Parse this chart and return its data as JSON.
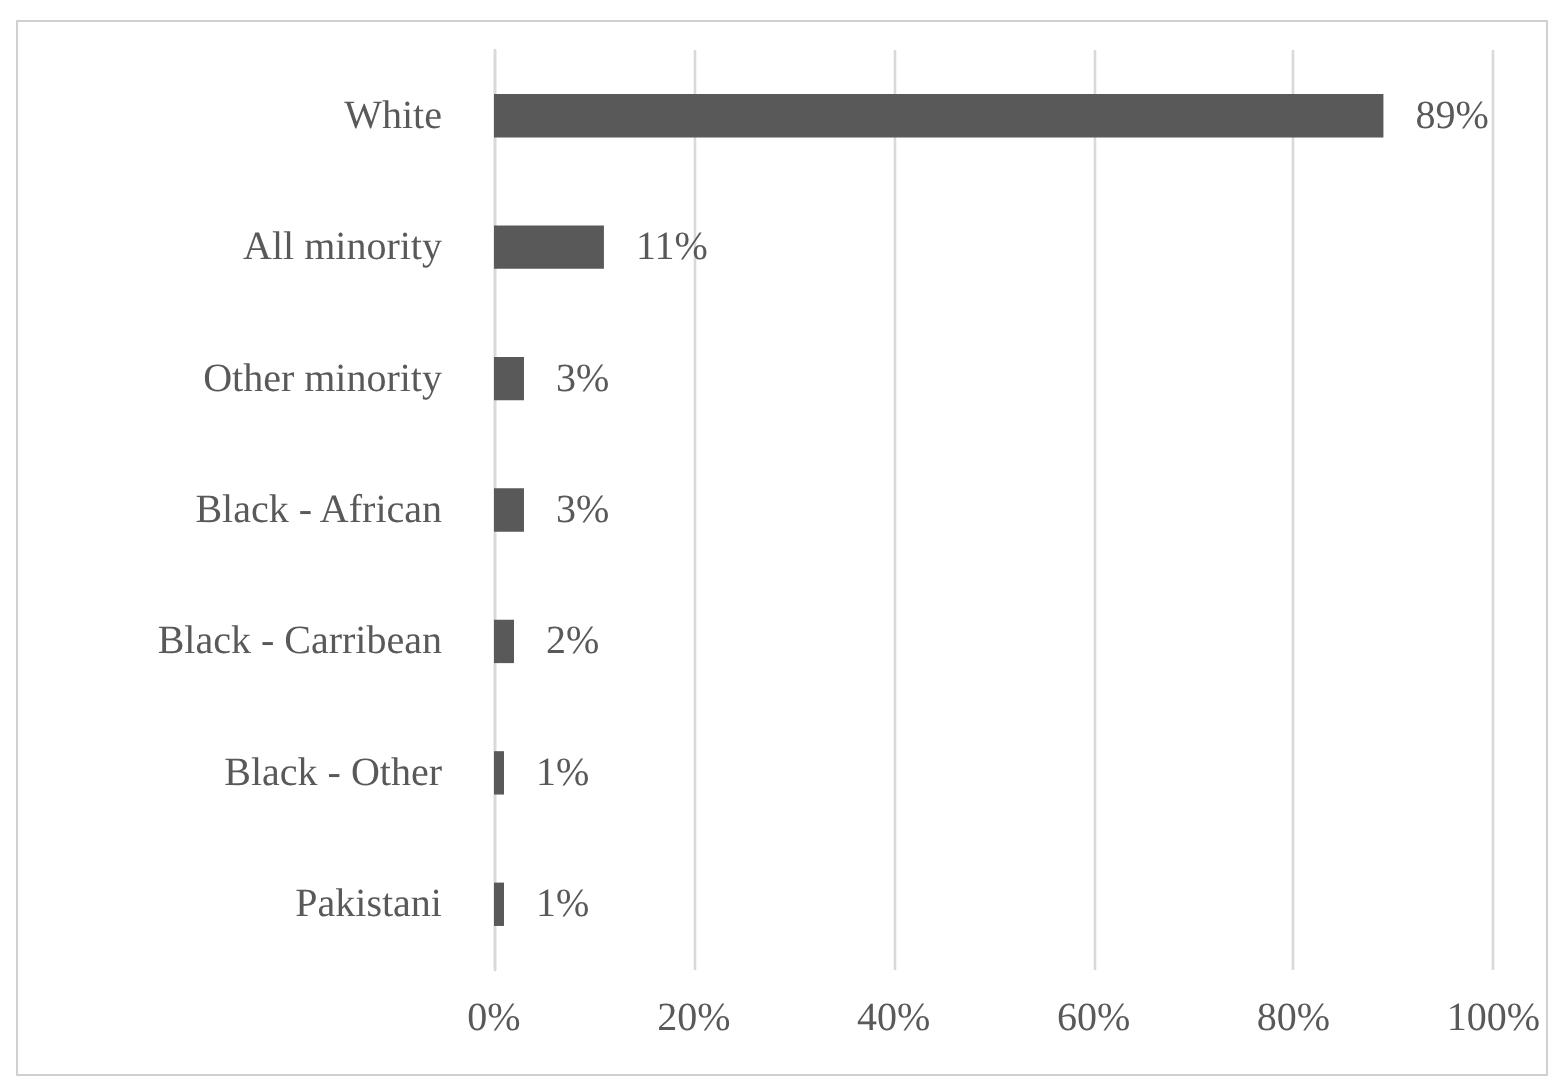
{
  "chart_data": {
    "type": "bar",
    "orientation": "horizontal",
    "categories": [
      "White",
      "All minority",
      "Other minority",
      "Black - African",
      "Black - Carribean",
      "Black - Other",
      "Pakistani"
    ],
    "values": [
      89,
      11,
      3,
      3,
      2,
      1,
      1
    ],
    "value_labels": [
      "89%",
      "11%",
      "3%",
      "3%",
      "2%",
      "1%",
      "1%"
    ],
    "color": "#595959",
    "xlim": [
      0,
      100
    ],
    "xticks": [
      {
        "value": 0,
        "label": "0%"
      },
      {
        "value": 20,
        "label": "20%"
      },
      {
        "value": 40,
        "label": "40%"
      },
      {
        "value": 60,
        "label": "60%"
      },
      {
        "value": 80,
        "label": "80%"
      },
      {
        "value": 100,
        "label": "100%"
      }
    ],
    "grid": "x"
  }
}
